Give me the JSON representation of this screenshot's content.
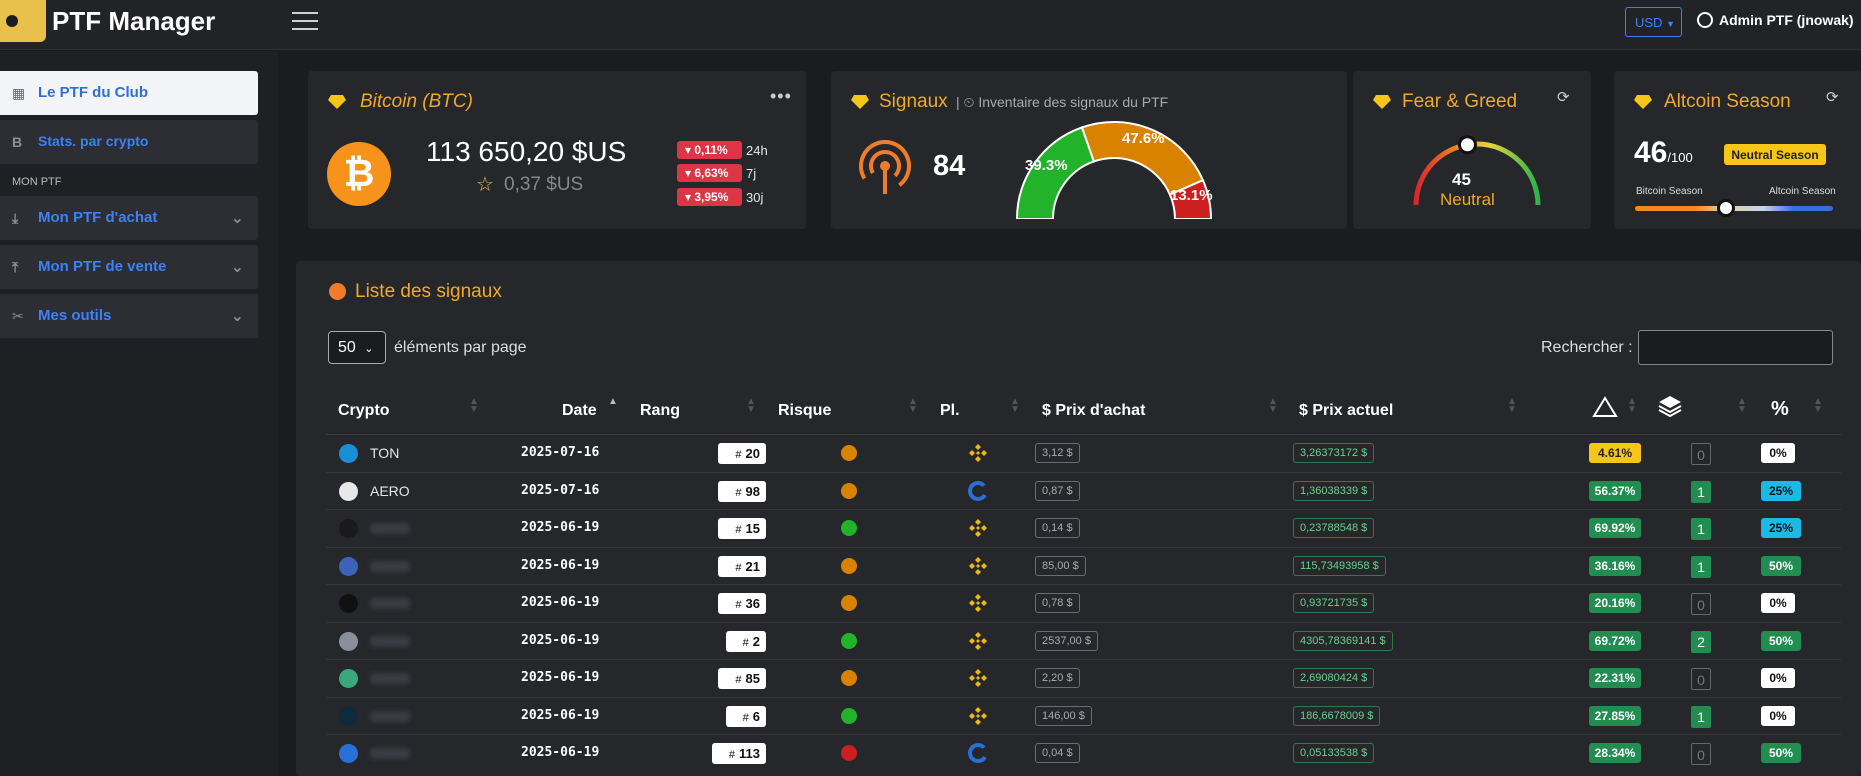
{
  "app": {
    "title": "PTF Manager"
  },
  "topbar": {
    "currency": "USD",
    "user": "Admin PTF (jnowak)"
  },
  "sidebar": {
    "items": [
      {
        "label": "Le PTF du Club",
        "icon": "grid-icon"
      },
      {
        "label": "Stats. par crypto",
        "icon": "bitcoin-icon"
      },
      {
        "label": "Mon PTF d'achat",
        "icon": "download-icon"
      },
      {
        "label": "Mon PTF de vente",
        "icon": "upload-icon"
      },
      {
        "label": "Mes outils",
        "icon": "tools-icon"
      }
    ],
    "section_label": "MON PTF"
  },
  "btc_card": {
    "title": "Bitcoin (BTC)",
    "price": "113 650,20 $US",
    "sub_price": "0,37 $US",
    "changes": [
      {
        "value": "0,11%",
        "period": "24h"
      },
      {
        "value": "6,63%",
        "period": "7j"
      },
      {
        "value": "3,95%",
        "period": "30j"
      }
    ]
  },
  "signals_card": {
    "title": "Signaux",
    "subtitle": "Inventaire des signaux du PTF",
    "count": "84",
    "gauge": [
      {
        "label": "39.3%",
        "value": 39.3,
        "color": "#22b32b"
      },
      {
        "label": "47.6%",
        "value": 47.6,
        "color": "#d98200"
      },
      {
        "label": "13.1%",
        "value": 13.1,
        "color": "#cc1f1f"
      }
    ]
  },
  "fear_greed": {
    "title": "Fear & Greed",
    "value": "45",
    "label": "Neutral",
    "level": 0.45
  },
  "altcoin": {
    "title": "Altcoin Season",
    "value": "46",
    "of": "/100",
    "badge": "Neutral Season",
    "left_label": "Bitcoin Season",
    "right_label": "Altcoin Season",
    "level": 0.46
  },
  "list": {
    "title": "Liste des signaux",
    "page_size": "50",
    "page_size_label": "éléments par page",
    "search_label": "Rechercher :",
    "headers": [
      "Crypto",
      "Date",
      "Rang",
      "Risque",
      "Pl.",
      "$ Prix d'achat",
      "$ Prix actuel",
      "%"
    ],
    "rows": [
      {
        "name": "TON",
        "date": "2025-07-16",
        "rank": "20",
        "risk": "#d98200",
        "platform": "binance",
        "buy": "3,12 $",
        "current": "3,26373172 $",
        "gain": "4.61%",
        "gain_style": "yellow",
        "count": "0",
        "perc": "0%",
        "perc_style": "w",
        "icon_color": "#1a8fd8"
      },
      {
        "name": "AERO",
        "date": "2025-07-16",
        "rank": "98",
        "risk": "#d98200",
        "platform": "coinbase",
        "buy": "0,87 $",
        "current": "1,36038339 $",
        "gain": "56.37%",
        "gain_style": "green",
        "count": "1",
        "perc": "25%",
        "perc_style": "c",
        "icon_color": "#e8e8e8"
      },
      {
        "name": "",
        "date": "2025-06-19",
        "rank": "15",
        "risk": "#22b32b",
        "platform": "binance",
        "buy": "0,14 $",
        "current": "0,23788548 $",
        "gain": "69.92%",
        "gain_style": "green",
        "count": "1",
        "perc": "25%",
        "perc_style": "c",
        "icon_color": "#1a1a1a"
      },
      {
        "name": "",
        "date": "2025-06-19",
        "rank": "21",
        "risk": "#d98200",
        "platform": "binance",
        "buy": "85,00 $",
        "current": "115,73493958 $",
        "gain": "36.16%",
        "gain_style": "green",
        "count": "1",
        "perc": "50%",
        "perc_style": "g",
        "icon_color": "#3d63b8"
      },
      {
        "name": "",
        "date": "2025-06-19",
        "rank": "36",
        "risk": "#d98200",
        "platform": "binance",
        "buy": "0,78 $",
        "current": "0,93721735 $",
        "gain": "20.16%",
        "gain_style": "green",
        "count": "0",
        "perc": "0%",
        "perc_style": "w",
        "icon_color": "#111111"
      },
      {
        "name": "",
        "date": "2025-06-19",
        "rank": "2",
        "risk": "#22b32b",
        "platform": "binance",
        "buy": "2537,00 $",
        "current": "4305,78369141 $",
        "gain": "69.72%",
        "gain_style": "green",
        "count": "2",
        "perc": "50%",
        "perc_style": "g",
        "icon_color": "#8a8f99"
      },
      {
        "name": "",
        "date": "2025-06-19",
        "rank": "85",
        "risk": "#d98200",
        "platform": "binance",
        "buy": "2,20 $",
        "current": "2,69080424 $",
        "gain": "22.31%",
        "gain_style": "green",
        "count": "0",
        "perc": "0%",
        "perc_style": "w",
        "icon_color": "#3aa87a"
      },
      {
        "name": "",
        "date": "2025-06-19",
        "rank": "6",
        "risk": "#22b32b",
        "platform": "binance",
        "buy": "146,00 $",
        "current": "186,6678009 $",
        "gain": "27.85%",
        "gain_style": "green",
        "count": "1",
        "perc": "0%",
        "perc_style": "w",
        "icon_color": "#0f2a3a"
      },
      {
        "name": "",
        "date": "2025-06-19",
        "rank": "113",
        "risk": "#cc1f1f",
        "platform": "coinbase",
        "buy": "0,04 $",
        "current": "0,05133538 $",
        "gain": "28.34%",
        "gain_style": "green",
        "count": "0",
        "perc": "50%",
        "perc_style": "g",
        "icon_color": "#2a6fd6"
      }
    ]
  }
}
